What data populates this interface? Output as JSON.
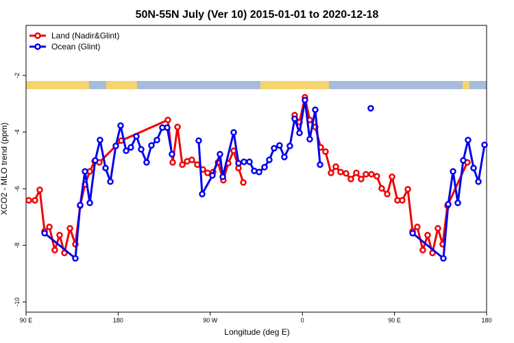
{
  "chart_data": {
    "type": "line",
    "title": "50N-55N July (Ver 10)   2015-01-01 to 2020-12-18",
    "xlabel": "Longitude (deg E)",
    "ylabel": "XCO2 - MLO trend (ppm)",
    "xlim": [
      90,
      540
    ],
    "ylim": [
      -10.36,
      -0.23
    ],
    "xticks": [
      {
        "value": 90,
        "label": "90 E"
      },
      {
        "value": 180,
        "label": "180"
      },
      {
        "value": 270,
        "label": "90 W"
      },
      {
        "value": 360,
        "label": "0"
      },
      {
        "value": 450,
        "label": "90 E"
      },
      {
        "value": 540,
        "label": "180"
      }
    ],
    "yticks": [
      -10,
      -8,
      -6,
      -4,
      -2
    ],
    "legend": "top-left",
    "series": [
      {
        "name": "Land (Nadir&Glint)",
        "color": "#ee0000",
        "x": [
          92.7,
          98.7,
          103.4,
          108.1,
          112.8,
          118.1,
          122.8,
          127.5,
          132.9,
          138.2,
          142.9,
          147.6,
          152.3,
          157.0,
          161.6,
          183.1,
          228.6,
          233.3,
          238.0,
          242.7,
          247.4,
          252.0,
          257.4,
          262.8,
          267.4,
          272.8,
          277.5,
          282.8,
          287.5,
          292.9,
          297.6,
          302.3,
          null,
          352.5,
          357.2,
          362.5,
          367.2,
          372.6,
          377.9,
          382.6,
          388.0,
          392.7,
          397.3,
          402.7,
          407.4,
          412.7,
          417.4,
          422.1,
          427.5,
          432.8,
          437.5,
          442.9,
          447.6,
          452.9,
          457.6,
          463.0,
          467.7,
          472.3,
          477.7,
          482.4,
          487.1,
          492.4,
          497.1,
          501.8,
          521.2
        ],
        "values": [
          -6.41,
          -6.41,
          -6.04,
          -7.5,
          -7.35,
          -8.17,
          -7.64,
          -8.27,
          -7.4,
          -7.96,
          -6.6,
          -5.85,
          -5.39,
          -5.03,
          -5.07,
          -4.3,
          -3.57,
          -5.07,
          -3.82,
          -5.15,
          -5.03,
          -4.98,
          -5.15,
          -5.32,
          -5.44,
          -5.41,
          -5.07,
          -5.7,
          -5.1,
          -4.66,
          -5.27,
          -5.78,
          null,
          -3.4,
          -3.65,
          -2.77,
          -3.57,
          -3.82,
          -4.54,
          -4.69,
          -5.44,
          -5.22,
          -5.41,
          -5.46,
          -5.66,
          -5.44,
          -5.66,
          -5.49,
          -5.49,
          -5.56,
          -5.99,
          -6.19,
          -5.58,
          -6.41,
          -6.41,
          -6.02,
          -7.5,
          -7.35,
          -8.17,
          -7.64,
          -8.27,
          -7.4,
          -7.96,
          -6.6,
          -5.07
        ]
      },
      {
        "name": "Ocean (Glint)",
        "color": "#0000ee",
        "x": [
          108.1,
          138.2,
          142.9,
          147.6,
          152.3,
          157.6,
          162.3,
          167.7,
          172.4,
          177.7,
          182.4,
          187.8,
          192.4,
          197.8,
          202.5,
          207.8,
          212.5,
          217.9,
          223.2,
          227.9,
          232.6,
          null,
          258.7,
          262.1,
          272.1,
          279.5,
          282.2,
          292.9,
          297.6,
          302.9,
          308.3,
          313.0,
          317.7,
          323.0,
          327.7,
          332.4,
          337.7,
          342.4,
          347.8,
          352.5,
          357.2,
          362.5,
          367.2,
          372.6,
          377.3,
          null,
          426.8,
          null,
          467.7,
          497.8,
          502.5,
          507.2,
          511.9,
          517.2,
          521.9,
          527.3,
          532.0,
          538.0
        ],
        "values": [
          -7.57,
          -8.46,
          -6.58,
          -5.39,
          -6.5,
          -5.0,
          -4.28,
          -5.27,
          -5.75,
          -4.49,
          -3.77,
          -4.66,
          -4.54,
          -4.15,
          -4.61,
          -5.07,
          -4.47,
          -4.28,
          -3.84,
          -3.84,
          -4.78,
          null,
          -4.3,
          -6.19,
          -5.53,
          -4.78,
          -5.58,
          -4.01,
          -5.1,
          -5.05,
          -5.05,
          -5.37,
          -5.41,
          -5.24,
          -4.98,
          -4.57,
          -4.47,
          -4.88,
          -4.49,
          -3.53,
          -4.03,
          -2.87,
          -4.25,
          -3.21,
          -5.15,
          null,
          -3.16,
          null,
          -7.57,
          -8.46,
          -6.55,
          -5.39,
          -6.5,
          -5.0,
          -4.28,
          -5.27,
          -5.75,
          -4.45
        ]
      }
    ]
  }
}
